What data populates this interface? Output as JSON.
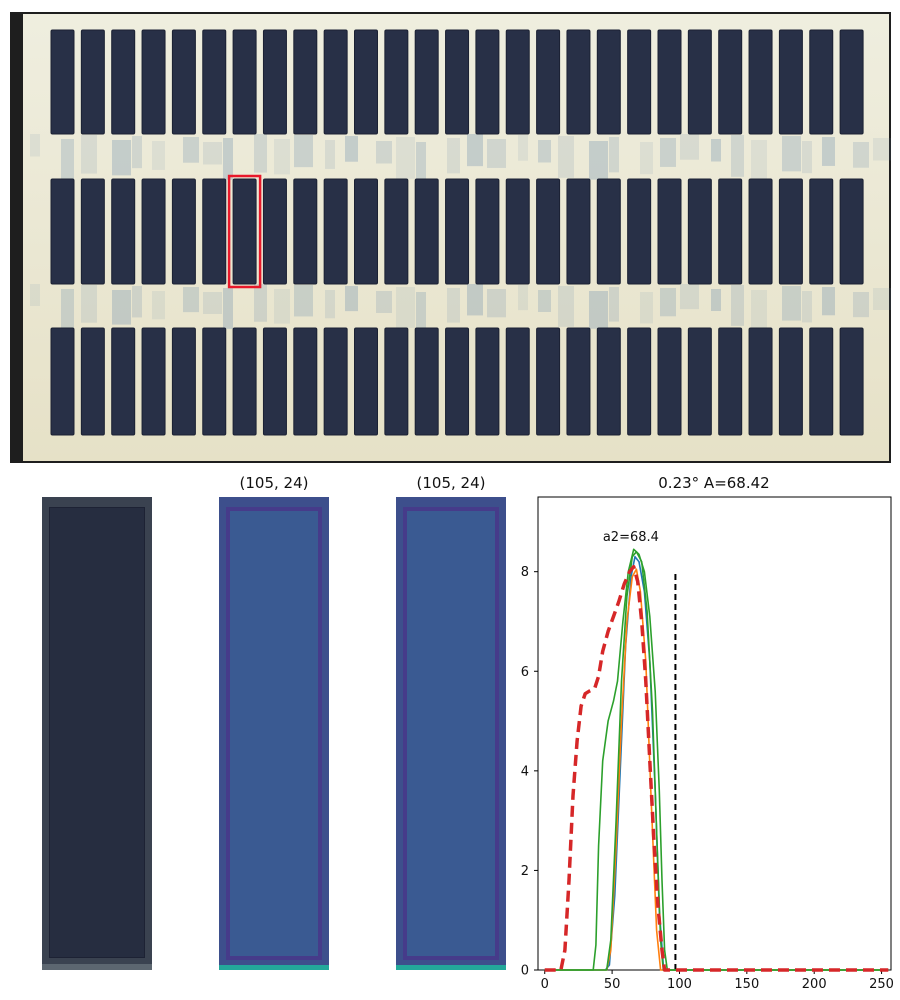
{
  "panels": {
    "crop_title_1": "(105, 24)",
    "crop_title_2": "(105, 24)",
    "chart_title": "0.23° A=68.42",
    "annotation": "a2=68.4"
  },
  "plate": {
    "rows": 3,
    "wells_per_row": 27,
    "selected_row": 2,
    "selected_well": 7,
    "colors": {
      "well": "#283047",
      "plate": "#ece9d2",
      "stain": "#6f8fae",
      "selection": "#e8182a",
      "edge": "#1f1f1f"
    }
  },
  "chart_data": {
    "type": "line",
    "title": "0.23° A=68.42",
    "xlabel": "",
    "ylabel": "",
    "xlim": [
      -5,
      257
    ],
    "ylim": [
      0,
      9.5
    ],
    "xticks": [
      0,
      50,
      100,
      150,
      200,
      250
    ],
    "yticks": [
      0,
      2,
      4,
      6,
      8
    ],
    "annotations": [
      {
        "text": "a2=68.4",
        "x": 68.4,
        "y": 8.7
      }
    ],
    "vline": {
      "x": 97,
      "y_top": 8.0,
      "style": "dashed",
      "color": "#000000"
    },
    "series": [
      {
        "color": "#1f77b4",
        "style": "solid",
        "points": [
          [
            0,
            0
          ],
          [
            45,
            0
          ],
          [
            48,
            0.1
          ],
          [
            52,
            1.5
          ],
          [
            56,
            4.0
          ],
          [
            60,
            6.5
          ],
          [
            64,
            7.9
          ],
          [
            67,
            8.3
          ],
          [
            70,
            8.2
          ],
          [
            74,
            7.6
          ],
          [
            78,
            6.2
          ],
          [
            82,
            3.6
          ],
          [
            85,
            1.2
          ],
          [
            88,
            0.1
          ],
          [
            90,
            0
          ],
          [
            255,
            0
          ]
        ]
      },
      {
        "color": "#ff7f0e",
        "style": "solid",
        "points": [
          [
            0,
            0
          ],
          [
            46,
            0
          ],
          [
            49,
            0.4
          ],
          [
            53,
            2.5
          ],
          [
            57,
            5.0
          ],
          [
            61,
            7.0
          ],
          [
            65,
            7.9
          ],
          [
            68,
            8.05
          ],
          [
            71,
            7.6
          ],
          [
            75,
            6.2
          ],
          [
            79,
            3.4
          ],
          [
            83,
            0.8
          ],
          [
            86,
            0
          ],
          [
            255,
            0
          ]
        ]
      },
      {
        "color": "#2ca02c",
        "style": "solid",
        "points": [
          [
            0,
            0
          ],
          [
            36,
            0
          ],
          [
            38,
            0.5
          ],
          [
            40,
            2.5
          ],
          [
            43,
            4.2
          ],
          [
            47,
            5.0
          ],
          [
            51,
            5.4
          ],
          [
            54,
            5.8
          ],
          [
            58,
            7.0
          ],
          [
            62,
            8.0
          ],
          [
            66,
            8.45
          ],
          [
            70,
            8.35
          ],
          [
            74,
            8.0
          ],
          [
            78,
            7.1
          ],
          [
            82,
            5.6
          ],
          [
            85,
            3.6
          ],
          [
            87,
            1.8
          ],
          [
            89,
            0.4
          ],
          [
            91,
            0
          ],
          [
            255,
            0
          ]
        ]
      },
      {
        "color": "#2ca02c",
        "style": "solid",
        "points": [
          [
            0,
            0
          ],
          [
            46,
            0
          ],
          [
            49,
            0.6
          ],
          [
            53,
            3.0
          ],
          [
            57,
            5.8
          ],
          [
            61,
            7.5
          ],
          [
            65,
            8.3
          ],
          [
            68,
            8.4
          ],
          [
            72,
            8.2
          ],
          [
            76,
            7.2
          ],
          [
            80,
            5.2
          ],
          [
            83,
            2.8
          ],
          [
            86,
            0.6
          ],
          [
            88,
            0
          ],
          [
            255,
            0
          ]
        ]
      },
      {
        "color": "#d62728",
        "style": "dashed",
        "points": [
          [
            0,
            0
          ],
          [
            12,
            0
          ],
          [
            15,
            0.4
          ],
          [
            18,
            1.8
          ],
          [
            21,
            3.5
          ],
          [
            24,
            4.6
          ],
          [
            27,
            5.3
          ],
          [
            30,
            5.55
          ],
          [
            33,
            5.6
          ],
          [
            37,
            5.65
          ],
          [
            40,
            5.9
          ],
          [
            43,
            6.4
          ],
          [
            47,
            6.8
          ],
          [
            51,
            7.1
          ],
          [
            55,
            7.4
          ],
          [
            59,
            7.75
          ],
          [
            63,
            8.0
          ],
          [
            66,
            8.1
          ],
          [
            69,
            7.8
          ],
          [
            72,
            7.0
          ],
          [
            75,
            5.8
          ],
          [
            78,
            4.2
          ],
          [
            81,
            2.6
          ],
          [
            84,
            1.3
          ],
          [
            87,
            0.4
          ],
          [
            89,
            0
          ],
          [
            255,
            0
          ]
        ]
      }
    ]
  }
}
